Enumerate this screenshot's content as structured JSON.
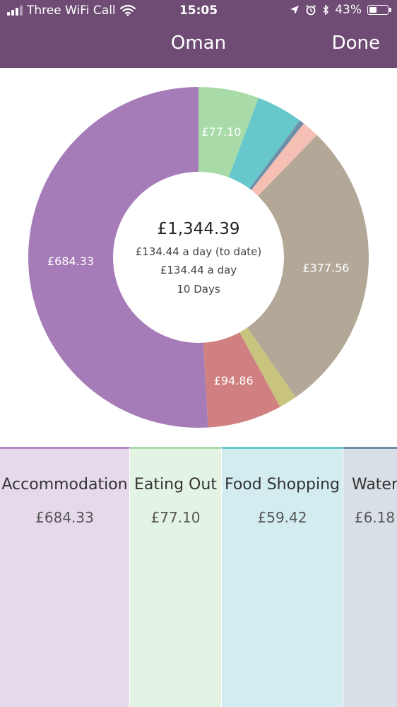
{
  "status_bar": {
    "carrier": "Three WiFi Call",
    "time": "15:05",
    "battery": "43%",
    "battery_level": 0.43,
    "icons": [
      "signal-icon",
      "wifi-icon",
      "location-icon",
      "alarm-icon",
      "bluetooth-icon",
      "battery-icon"
    ]
  },
  "nav": {
    "title": "Oman",
    "done_label": "Done"
  },
  "colors": {
    "header": "#6e4c74"
  },
  "summary": {
    "total": "£1,344.39",
    "per_day_to_date": "£134.44 a day (to date)",
    "per_day": "£134.44 a day",
    "days": "10 Days"
  },
  "chart_data": {
    "type": "pie",
    "title": "",
    "slices": [
      {
        "value": 77.1,
        "label": "£77.10",
        "color": "#a8dba8"
      },
      {
        "value": 59.42,
        "label": "",
        "color": "#67c8cc"
      },
      {
        "value": 6.18,
        "label": "",
        "color": "#6f8fa8"
      },
      {
        "value": 22.0,
        "label": "",
        "color": "#f6bfb3"
      },
      {
        "value": 377.56,
        "label": "£377.56",
        "color": "#b3a898"
      },
      {
        "value": 22.94,
        "label": "",
        "color": "#c8c47e"
      },
      {
        "value": 94.86,
        "label": "£94.86",
        "color": "#d08080"
      },
      {
        "value": 684.33,
        "label": "£684.33",
        "color": "#a67cb8"
      }
    ]
  },
  "categories": [
    {
      "name": "Accommodation",
      "value": "£684.33",
      "bg": "#e6d9eb",
      "border": "#b48bc4"
    },
    {
      "name": "Eating Out",
      "value": "£77.10",
      "bg": "#e4f4e4",
      "border": "#a8dba8"
    },
    {
      "name": "Food Shopping",
      "value": "£59.42",
      "bg": "#d2ecef",
      "border": "#67c8cc"
    },
    {
      "name": "Water",
      "value": "£6.18",
      "bg": "#d8dfe6",
      "border": "#6f8fa8"
    }
  ]
}
